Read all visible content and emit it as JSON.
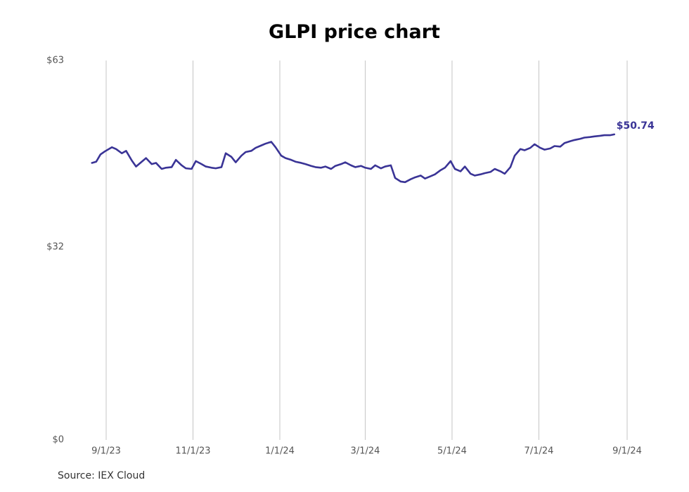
{
  "colors": {
    "line": "#3a3496",
    "grid": "#c4c4c4",
    "background": "#ffffff"
  },
  "chart_data": {
    "type": "line",
    "title": "GLPI price chart",
    "xlabel": "",
    "ylabel": "",
    "source": "Source: IEX Cloud",
    "end_label": "$50.74",
    "ylim": [
      0,
      63
    ],
    "y_ticks": [
      {
        "value": 0,
        "label": "$0"
      },
      {
        "value": 32,
        "label": "$32"
      },
      {
        "value": 63,
        "label": "$63"
      }
    ],
    "x_ticks": [
      {
        "date": "2023-09-01",
        "label": "9/1/23"
      },
      {
        "date": "2023-11-01",
        "label": "11/1/23"
      },
      {
        "date": "2024-01-01",
        "label": "1/1/24"
      },
      {
        "date": "2024-03-01",
        "label": "3/1/24"
      },
      {
        "date": "2024-05-01",
        "label": "5/1/24"
      },
      {
        "date": "2024-07-01",
        "label": "7/1/24"
      },
      {
        "date": "2024-09-01",
        "label": "9/1/24"
      }
    ],
    "grid": "vertical",
    "series": [
      {
        "x": [
          "2023-08-22",
          "2023-08-25",
          "2023-08-28",
          "2023-08-31",
          "2023-09-05",
          "2023-09-08",
          "2023-09-12",
          "2023-09-15",
          "2023-09-19",
          "2023-09-22",
          "2023-09-26",
          "2023-09-29",
          "2023-10-03",
          "2023-10-06",
          "2023-10-10",
          "2023-10-13",
          "2023-10-17",
          "2023-10-20",
          "2023-10-24",
          "2023-10-27",
          "2023-10-31",
          "2023-11-03",
          "2023-11-07",
          "2023-11-10",
          "2023-11-14",
          "2023-11-17",
          "2023-11-21",
          "2023-11-24",
          "2023-11-28",
          "2023-12-01",
          "2023-12-05",
          "2023-12-08",
          "2023-12-12",
          "2023-12-15",
          "2023-12-19",
          "2023-12-22",
          "2023-12-26",
          "2023-12-29",
          "2024-01-02",
          "2024-01-05",
          "2024-01-09",
          "2024-01-12",
          "2024-01-16",
          "2024-01-19",
          "2024-01-23",
          "2024-01-26",
          "2024-01-30",
          "2024-02-02",
          "2024-02-06",
          "2024-02-09",
          "2024-02-13",
          "2024-02-16",
          "2024-02-20",
          "2024-02-23",
          "2024-02-27",
          "2024-03-01",
          "2024-03-05",
          "2024-03-08",
          "2024-03-12",
          "2024-03-15",
          "2024-03-19",
          "2024-03-22",
          "2024-03-26",
          "2024-03-29",
          "2024-04-02",
          "2024-04-05",
          "2024-04-09",
          "2024-04-12",
          "2024-04-16",
          "2024-04-19",
          "2024-04-23",
          "2024-04-26",
          "2024-04-30",
          "2024-05-03",
          "2024-05-07",
          "2024-05-10",
          "2024-05-14",
          "2024-05-17",
          "2024-05-21",
          "2024-05-24",
          "2024-05-28",
          "2024-05-31",
          "2024-06-04",
          "2024-06-07",
          "2024-06-11",
          "2024-06-14",
          "2024-06-18",
          "2024-06-21",
          "2024-06-25",
          "2024-06-28",
          "2024-07-02",
          "2024-07-05",
          "2024-07-09",
          "2024-07-12",
          "2024-07-16",
          "2024-07-19",
          "2024-07-23",
          "2024-07-26",
          "2024-07-30",
          "2024-08-02",
          "2024-08-06",
          "2024-08-09",
          "2024-08-13",
          "2024-08-16",
          "2024-08-20",
          "2024-08-23"
        ],
        "values": [
          46.0,
          46.2,
          47.4,
          47.9,
          48.6,
          48.3,
          47.6,
          48.0,
          46.4,
          45.4,
          46.2,
          46.8,
          45.8,
          46.0,
          45.0,
          45.2,
          45.3,
          46.5,
          45.6,
          45.1,
          45.0,
          46.3,
          45.8,
          45.4,
          45.2,
          45.1,
          45.3,
          47.6,
          47.0,
          46.1,
          47.2,
          47.8,
          48.0,
          48.5,
          48.9,
          49.2,
          49.5,
          48.6,
          47.2,
          46.8,
          46.5,
          46.2,
          46.0,
          45.8,
          45.5,
          45.3,
          45.2,
          45.4,
          45.0,
          45.5,
          45.8,
          46.1,
          45.6,
          45.3,
          45.5,
          45.2,
          45.0,
          45.6,
          45.1,
          45.4,
          45.6,
          43.5,
          42.9,
          42.8,
          43.3,
          43.6,
          43.9,
          43.4,
          43.8,
          44.1,
          44.8,
          45.2,
          46.3,
          45.0,
          44.6,
          45.4,
          44.2,
          43.9,
          44.1,
          44.3,
          44.5,
          45.0,
          44.6,
          44.2,
          45.3,
          47.2,
          48.3,
          48.1,
          48.5,
          49.1,
          48.5,
          48.2,
          48.4,
          48.8,
          48.7,
          49.3,
          49.6,
          49.8,
          50.0,
          50.2,
          50.3,
          50.4,
          50.5,
          50.6,
          50.6,
          50.74
        ]
      }
    ]
  }
}
